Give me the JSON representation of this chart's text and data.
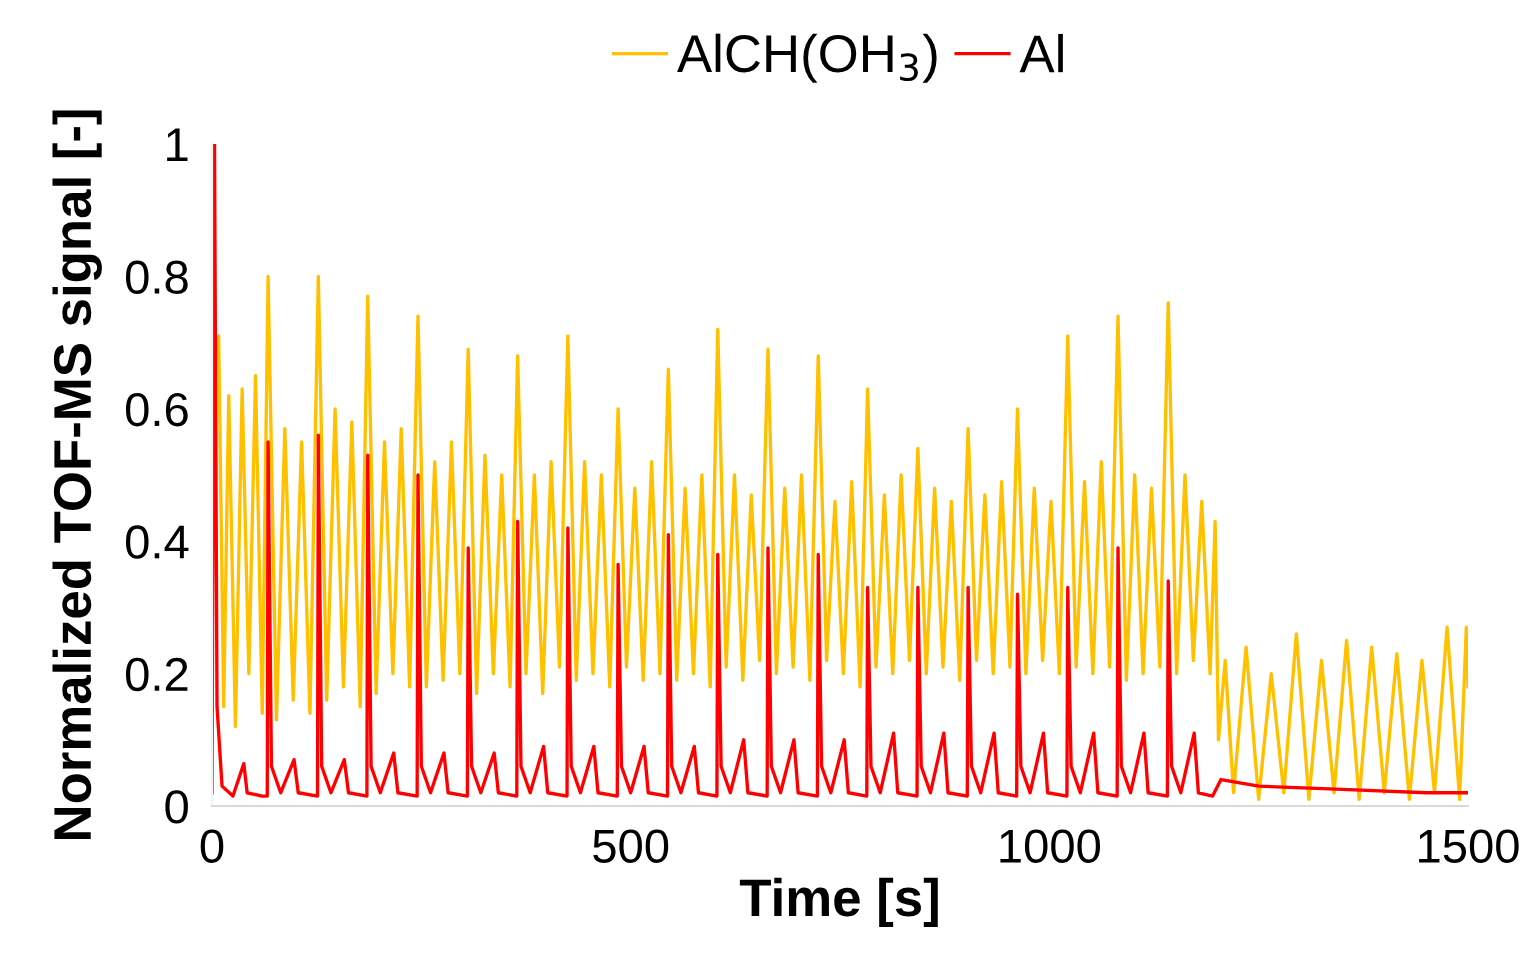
{
  "chart_data": {
    "type": "line",
    "xlabel": "Time [s]",
    "ylabel": "Normalized TOF-MS signal [-]",
    "xlim": [
      0,
      1500
    ],
    "ylim": [
      0,
      1
    ],
    "xticks": [
      0,
      500,
      1000,
      1500
    ],
    "yticks": [
      0,
      0.2,
      0.4,
      0.6,
      0.8,
      1
    ],
    "legend": "top",
    "grid": false,
    "marker": "none",
    "line_style": "solid",
    "series": [
      {
        "name": "AlCH(OH$_{3}$)",
        "color": "#ffc000",
        "x": [
          0,
          3,
          8,
          14,
          20,
          28,
          36,
          44,
          52,
          60,
          67,
          77,
          87,
          97,
          107,
          117,
          127,
          137,
          147,
          157,
          167,
          177,
          186,
          196,
          206,
          216,
          226,
          236,
          246,
          256,
          266,
          276,
          286,
          296,
          306,
          316,
          326,
          336,
          346,
          356,
          365,
          375,
          385,
          395,
          405,
          415,
          425,
          435,
          445,
          455,
          465,
          475,
          485,
          495,
          505,
          515,
          525,
          535,
          545,
          555,
          565,
          575,
          585,
          595,
          604,
          614,
          624,
          634,
          644,
          654,
          664,
          674,
          684,
          694,
          704,
          714,
          724,
          734,
          744,
          754,
          764,
          774,
          783,
          793,
          803,
          813,
          823,
          833,
          843,
          853,
          863,
          873,
          883,
          893,
          903,
          913,
          923,
          933,
          943,
          953,
          962,
          972,
          982,
          992,
          1002,
          1012,
          1022,
          1032,
          1042,
          1052,
          1062,
          1072,
          1082,
          1092,
          1102,
          1112,
          1122,
          1132,
          1142,
          1152,
          1162,
          1172,
          1182,
          1192,
          1198,
          1202,
          1210,
          1220,
          1235,
          1250,
          1265,
          1280,
          1295,
          1310,
          1325,
          1340,
          1355,
          1370,
          1385,
          1400,
          1415,
          1430,
          1445,
          1460,
          1475,
          1490,
          1498,
          1500
        ],
        "values": [
          0.3,
          0.66,
          0.71,
          0.15,
          0.62,
          0.12,
          0.63,
          0.2,
          0.65,
          0.14,
          0.8,
          0.13,
          0.57,
          0.16,
          0.55,
          0.14,
          0.8,
          0.16,
          0.6,
          0.18,
          0.58,
          0.15,
          0.77,
          0.17,
          0.55,
          0.2,
          0.57,
          0.18,
          0.74,
          0.18,
          0.52,
          0.19,
          0.55,
          0.2,
          0.69,
          0.17,
          0.53,
          0.2,
          0.5,
          0.18,
          0.68,
          0.2,
          0.5,
          0.17,
          0.52,
          0.21,
          0.71,
          0.19,
          0.52,
          0.2,
          0.5,
          0.18,
          0.6,
          0.21,
          0.48,
          0.19,
          0.52,
          0.2,
          0.66,
          0.19,
          0.48,
          0.2,
          0.5,
          0.18,
          0.72,
          0.21,
          0.5,
          0.19,
          0.47,
          0.22,
          0.69,
          0.2,
          0.48,
          0.21,
          0.5,
          0.19,
          0.68,
          0.22,
          0.46,
          0.2,
          0.49,
          0.18,
          0.63,
          0.21,
          0.47,
          0.2,
          0.5,
          0.22,
          0.54,
          0.2,
          0.48,
          0.21,
          0.46,
          0.19,
          0.57,
          0.22,
          0.47,
          0.2,
          0.49,
          0.21,
          0.6,
          0.2,
          0.48,
          0.22,
          0.46,
          0.2,
          0.71,
          0.21,
          0.49,
          0.2,
          0.52,
          0.21,
          0.74,
          0.19,
          0.5,
          0.2,
          0.48,
          0.21,
          0.76,
          0.2,
          0.5,
          0.22,
          0.46,
          0.2,
          0.43,
          0.1,
          0.22,
          0.02,
          0.24,
          0.01,
          0.2,
          0.02,
          0.26,
          0.01,
          0.22,
          0.02,
          0.25,
          0.01,
          0.24,
          0.02,
          0.23,
          0.01,
          0.22,
          0.02,
          0.27,
          0.01,
          0.27,
          0.18
        ]
      },
      {
        "name": "Al",
        "color": "#ff0000",
        "x": [
          0,
          3,
          6,
          12,
          25,
          38,
          42,
          60,
          66,
          67,
          71,
          82,
          98,
          103,
          126,
          127,
          131,
          142,
          158,
          163,
          185,
          186,
          190,
          201,
          217,
          222,
          245,
          246,
          250,
          261,
          277,
          282,
          305,
          306,
          310,
          321,
          337,
          342,
          364,
          365,
          369,
          380,
          396,
          401,
          424,
          425,
          429,
          440,
          456,
          461,
          484,
          485,
          489,
          500,
          516,
          521,
          544,
          545,
          549,
          560,
          576,
          581,
          603,
          604,
          608,
          619,
          635,
          640,
          663,
          664,
          668,
          679,
          695,
          700,
          723,
          724,
          728,
          739,
          755,
          760,
          782,
          783,
          787,
          798,
          814,
          819,
          842,
          843,
          847,
          858,
          874,
          879,
          902,
          903,
          907,
          918,
          934,
          939,
          961,
          962,
          966,
          977,
          993,
          998,
          1021,
          1022,
          1026,
          1037,
          1053,
          1058,
          1081,
          1082,
          1086,
          1097,
          1113,
          1118,
          1141,
          1142,
          1146,
          1157,
          1173,
          1178,
          1195,
          1205,
          1250,
          1350,
          1450,
          1500
        ],
        "values": [
          0.02,
          1.0,
          0.15,
          0.03,
          0.015,
          0.064,
          0.02,
          0.015,
          0.015,
          0.55,
          0.06,
          0.02,
          0.07,
          0.02,
          0.015,
          0.56,
          0.06,
          0.02,
          0.07,
          0.02,
          0.015,
          0.53,
          0.06,
          0.02,
          0.08,
          0.02,
          0.015,
          0.5,
          0.06,
          0.02,
          0.08,
          0.02,
          0.015,
          0.39,
          0.06,
          0.02,
          0.08,
          0.02,
          0.015,
          0.43,
          0.06,
          0.02,
          0.09,
          0.02,
          0.015,
          0.42,
          0.06,
          0.02,
          0.09,
          0.02,
          0.015,
          0.365,
          0.06,
          0.02,
          0.09,
          0.02,
          0.015,
          0.41,
          0.06,
          0.02,
          0.09,
          0.02,
          0.015,
          0.38,
          0.06,
          0.02,
          0.1,
          0.02,
          0.015,
          0.39,
          0.06,
          0.02,
          0.1,
          0.02,
          0.015,
          0.38,
          0.06,
          0.02,
          0.1,
          0.02,
          0.015,
          0.33,
          0.06,
          0.02,
          0.11,
          0.02,
          0.015,
          0.33,
          0.06,
          0.02,
          0.11,
          0.02,
          0.015,
          0.33,
          0.06,
          0.02,
          0.11,
          0.02,
          0.015,
          0.32,
          0.06,
          0.02,
          0.11,
          0.02,
          0.015,
          0.33,
          0.06,
          0.02,
          0.11,
          0.02,
          0.015,
          0.39,
          0.06,
          0.02,
          0.11,
          0.02,
          0.015,
          0.34,
          0.06,
          0.02,
          0.11,
          0.02,
          0.015,
          0.04,
          0.03,
          0.025,
          0.02,
          0.02
        ]
      }
    ]
  }
}
